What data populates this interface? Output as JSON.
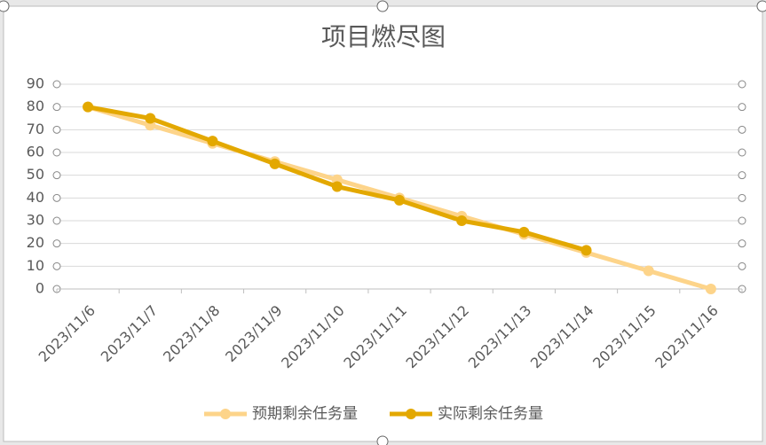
{
  "chart_data": {
    "type": "line",
    "title": "项目燃尽图",
    "categories": [
      "2023/11/6",
      "2023/11/7",
      "2023/11/8",
      "2023/11/9",
      "2023/11/10",
      "2023/11/11",
      "2023/11/12",
      "2023/11/13",
      "2023/11/14",
      "2023/11/15",
      "2023/11/16"
    ],
    "series": [
      {
        "name": "预期剩余任务量",
        "color": "#fdd48a",
        "values": [
          80,
          72,
          64,
          56,
          48,
          40,
          32,
          24,
          16,
          8,
          0
        ]
      },
      {
        "name": "实际剩余任务量",
        "color": "#e3a800",
        "values": [
          80,
          75,
          65,
          55,
          45,
          39,
          30,
          25,
          17,
          null,
          null
        ]
      }
    ],
    "ylim": [
      0,
      90
    ],
    "yticks": [
      0,
      10,
      20,
      30,
      40,
      50,
      60,
      70,
      80,
      90
    ],
    "grid": true,
    "legend": "bottom"
  }
}
